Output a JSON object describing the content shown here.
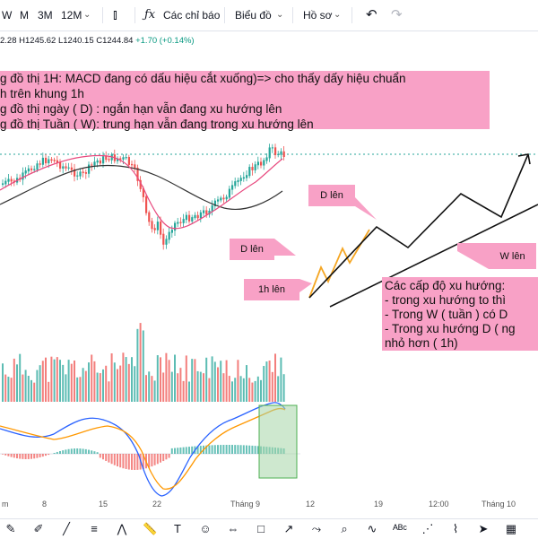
{
  "toolbar": {
    "intervals": [
      "W",
      "M",
      "3M",
      "12M"
    ],
    "indicators_label": "Các chỉ báo",
    "chart_type_label": "Biểu đồ",
    "profile_label": "Hồ sơ"
  },
  "ohlc": {
    "open": "2.28",
    "high": "H1245.62",
    "low": "L1240.15",
    "close": "C1244.84",
    "change": "+1.70 (+0.14%)"
  },
  "notes": {
    "line1": "g đồ thị 1H: MACD đang có dấu hiệu cắt xuống)=> cho thấy dấy hiệu chuẩn",
    "line2": "h trên khung 1h",
    "line3": "g đồ thị ngày ( D) : ngắn hạn vẫn đang xu hướng lên",
    "line4": "g đồ thị Tuần ( W): trung hạn vẫn đang trong xu hướng lên"
  },
  "callout": {
    "line1": "Các cấp độ xu hướng:",
    "line2": "- trong xu hướng to thì",
    "line3": "- Trong W ( tuần ) có D",
    "line4": "- Trong xu hướng D ( ng",
    "line5": "nhỏ hơn ( 1h)"
  },
  "tags": {
    "d_len_1": "D lên",
    "d_len_2": "D lên",
    "w_len": "W lên",
    "h1_len": "1h lên"
  },
  "time_axis": {
    "labels": [
      "m",
      "8",
      "15",
      "22",
      "Tháng 9",
      "12",
      "19",
      "12:00",
      "Tháng 10"
    ]
  },
  "colors": {
    "note_bg": "#f8a1c6",
    "up_candle": "#26a69a",
    "down_candle": "#ef5350",
    "ma_fast": "#e84a7f",
    "ma_slow": "#333333",
    "macd_line": "#2962ff",
    "signal_line": "#ff9800",
    "highlight_box": "#a5d6a7",
    "h1_wave": "#f5a623"
  },
  "bottom_icons": [
    "brush-icon",
    "pen-icon",
    "line-tool-icon",
    "fib-icon",
    "pattern-icon",
    "ruler-icon",
    "text-icon",
    "emoji-icon",
    "measure-icon",
    "shapes-icon",
    "arrow-icon",
    "forecast-icon",
    "zoom-icon",
    "curve-icon",
    "abc-pattern-icon",
    "path-icon",
    "elliott-icon",
    "cursor-icon",
    "grid-icon"
  ]
}
